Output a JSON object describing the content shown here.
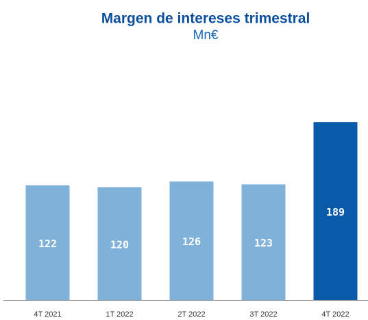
{
  "chart_data": {
    "type": "bar",
    "title": "Margen de intereses trimestral",
    "subtitle": "Mn€",
    "categories": [
      "4T 2021",
      "1T 2022",
      "2T 2022",
      "3T 2022",
      "4T 2022"
    ],
    "values": [
      122,
      120,
      126,
      123,
      189
    ],
    "colors": [
      "#80b2d9",
      "#80b2d9",
      "#80b2d9",
      "#80b2d9",
      "#0a5aaa"
    ]
  }
}
